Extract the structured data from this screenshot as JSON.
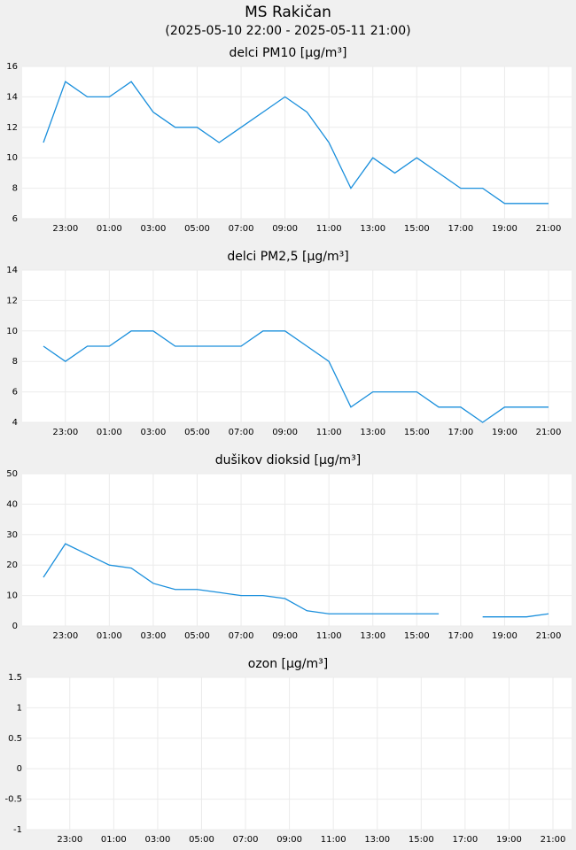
{
  "title": "MS Rakičan",
  "subtitle": "(2025-05-10 22:00 - 2025-05-11 21:00)",
  "chart_data": [
    {
      "type": "line",
      "title": "delci PM10 [µg/m³]",
      "color": "#1a8fdc",
      "grid": true,
      "categories": [
        null,
        "23:00",
        null,
        "01:00",
        null,
        "03:00",
        null,
        "05:00",
        null,
        "07:00",
        null,
        "09:00",
        null,
        "11:00",
        null,
        "13:00",
        null,
        "15:00",
        null,
        "17:00",
        null,
        "19:00",
        null,
        "21:00"
      ],
      "values": [
        11,
        15,
        14,
        14,
        15,
        13,
        12,
        12,
        11,
        12,
        13,
        14,
        13,
        11,
        8,
        10,
        9,
        10,
        9,
        8,
        8,
        7,
        7,
        7
      ],
      "ylim": [
        6,
        16
      ],
      "yticks": [
        6,
        8,
        10,
        12,
        14,
        16
      ]
    },
    {
      "type": "line",
      "title": "delci PM2,5 [µg/m³]",
      "color": "#1a8fdc",
      "grid": true,
      "categories": [
        null,
        "23:00",
        null,
        "01:00",
        null,
        "03:00",
        null,
        "05:00",
        null,
        "07:00",
        null,
        "09:00",
        null,
        "11:00",
        null,
        "13:00",
        null,
        "15:00",
        null,
        "17:00",
        null,
        "19:00",
        null,
        "21:00"
      ],
      "values": [
        9,
        8,
        9,
        9,
        10,
        10,
        9,
        9,
        9,
        9,
        10,
        10,
        9,
        8,
        5,
        6,
        6,
        6,
        5,
        5,
        4,
        5,
        5,
        5
      ],
      "ylim": [
        4,
        14
      ],
      "yticks": [
        4,
        6,
        8,
        10,
        12,
        14
      ]
    },
    {
      "type": "line",
      "title": "dušikov dioksid [µg/m³]",
      "color": "#1a8fdc",
      "grid": true,
      "categories": [
        null,
        "23:00",
        null,
        "01:00",
        null,
        "03:00",
        null,
        "05:00",
        null,
        "07:00",
        null,
        "09:00",
        null,
        "11:00",
        null,
        "13:00",
        null,
        "15:00",
        null,
        "17:00",
        null,
        "19:00",
        null,
        "21:00"
      ],
      "values": [
        16,
        27,
        23.5,
        20,
        19,
        14,
        12,
        12,
        11,
        10,
        10,
        9,
        5,
        4,
        4,
        4,
        4,
        4,
        4,
        null,
        3,
        3,
        3,
        4
      ],
      "ylim": [
        0,
        50
      ],
      "yticks": [
        0,
        10,
        20,
        30,
        40,
        50
      ]
    },
    {
      "type": "line",
      "title": "ozon [µg/m³]",
      "color": "#1a8fdc",
      "grid": true,
      "categories": [
        null,
        "23:00",
        null,
        "01:00",
        null,
        "03:00",
        null,
        "05:00",
        null,
        "07:00",
        null,
        "09:00",
        null,
        "11:00",
        null,
        "13:00",
        null,
        "15:00",
        null,
        "17:00",
        null,
        "19:00",
        null,
        "21:00"
      ],
      "values": [
        null,
        null,
        null,
        null,
        null,
        null,
        null,
        null,
        null,
        null,
        null,
        null,
        null,
        null,
        null,
        null,
        null,
        null,
        null,
        null,
        null,
        null,
        null,
        null
      ],
      "ylim": [
        -1,
        1.5
      ],
      "yticks": [
        -1,
        -0.5,
        0,
        0.5,
        1,
        1.5
      ]
    }
  ]
}
